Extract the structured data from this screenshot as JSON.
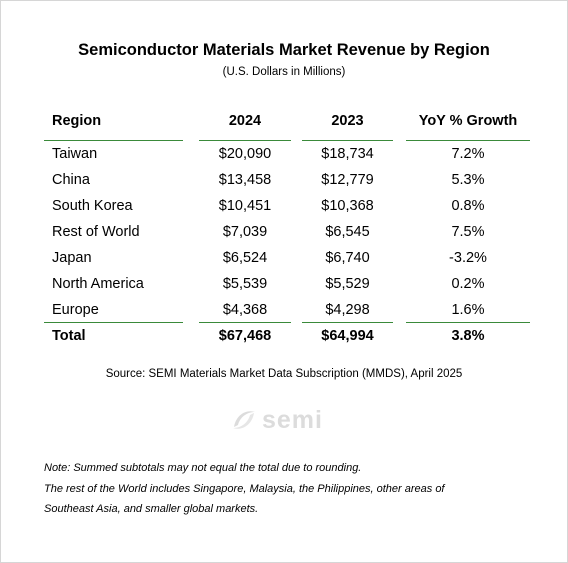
{
  "title": "Semiconductor Materials Market Revenue by Region",
  "subtitle": "(U.S. Dollars in Millions)",
  "table": {
    "headers": [
      "Region",
      "2024",
      "2023",
      "YoY % Growth"
    ],
    "rows": [
      {
        "region": "Taiwan",
        "y2024": "$20,090",
        "y2023": "$18,734",
        "yoy": "7.2%"
      },
      {
        "region": "China",
        "y2024": "$13,458",
        "y2023": "$12,779",
        "yoy": "5.3%"
      },
      {
        "region": "South Korea",
        "y2024": "$10,451",
        "y2023": "$10,368",
        "yoy": "0.8%"
      },
      {
        "region": "Rest of World",
        "y2024": "$7,039",
        "y2023": "$6,545",
        "yoy": "7.5%"
      },
      {
        "region": "Japan",
        "y2024": "$6,524",
        "y2023": "$6,740",
        "yoy": "-3.2%"
      },
      {
        "region": "North America",
        "y2024": "$5,539",
        "y2023": "$5,529",
        "yoy": "0.2%"
      },
      {
        "region": "Europe",
        "y2024": "$4,368",
        "y2023": "$4,298",
        "yoy": "1.6%"
      }
    ],
    "total": {
      "region": "Total",
      "y2024": "$67,468",
      "y2023": "$64,994",
      "yoy": "3.8%"
    }
  },
  "source": "Source: SEMI Materials Market Data Subscription (MMDS), April 2025",
  "logo": {
    "text": "semi",
    "icon": "semi-swirl-logo"
  },
  "notes": [
    "Note: Summed subtotals may not equal the total due to rounding.",
    "The rest of the World includes Singapore, Malaysia, the Philippines, other areas of",
    "Southeast Asia, and smaller global markets."
  ],
  "colors": {
    "rule": "#3a8a3a",
    "logo": "#dcdcdc"
  }
}
